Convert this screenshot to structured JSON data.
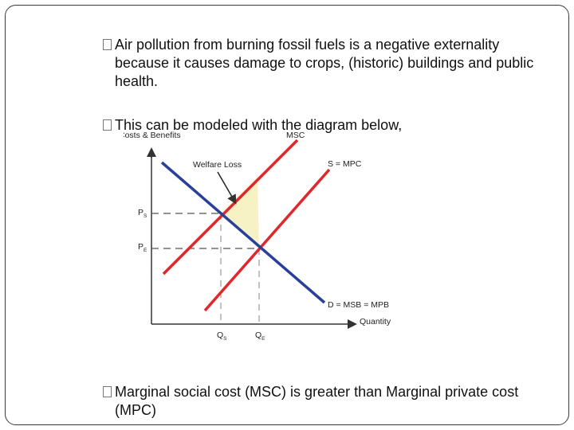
{
  "bullets": [
    "Air pollution from burning fossil fuels is a negative externality because it causes damage to crops, (historic) buildings and public health.",
    "This can be modeled with the diagram below,",
    "Marginal social cost (MSC) is greater than Marginal private cost (MPC)"
  ],
  "diagram": {
    "y_axis_label": "Costs & Benefits",
    "x_axis_label": "Quantity",
    "msc_label": "MSC",
    "supply_label": "S = MPC",
    "demand_label": "D = MSB = MPB",
    "welfare_loss_label": "Welfare Loss",
    "ps_label": "P",
    "ps_sub": "S",
    "pe_label": "P",
    "pe_sub": "E",
    "qs_label": "Q",
    "qs_sub": "S",
    "qe_label": "Q",
    "qe_sub": "E",
    "colors": {
      "msc": "#e0282c",
      "supply": "#e0282c",
      "demand": "#2a3f9a",
      "welfare_fill": "#f7f2c6",
      "axis": "#333333",
      "guide": "#555555"
    }
  }
}
